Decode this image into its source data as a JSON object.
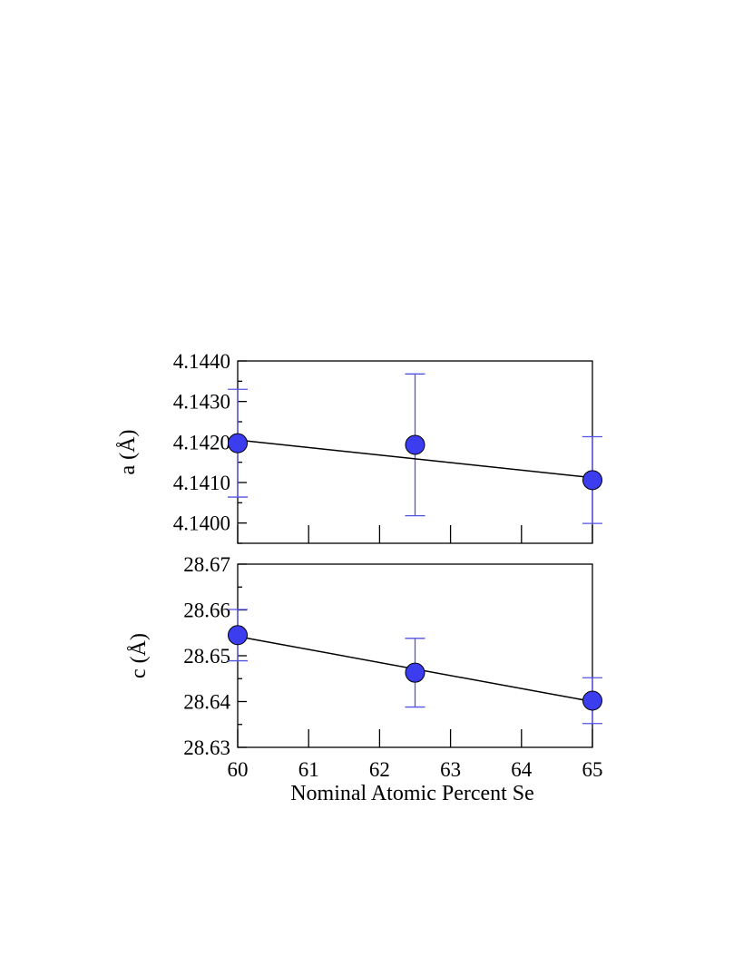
{
  "chart_data": [
    {
      "type": "scatter",
      "title": "",
      "xlabel": "",
      "ylabel": "a (Å)",
      "xlim": [
        60,
        65
      ],
      "ylim": [
        4.1395,
        4.144
      ],
      "x_ticks": [
        60,
        61,
        62,
        63,
        64,
        65
      ],
      "y_ticks": [
        4.14,
        4.141,
        4.142,
        4.143,
        4.144
      ],
      "y_tick_labels": [
        "4.1400",
        "4.1410",
        "4.1420",
        "4.1430",
        "4.1440"
      ],
      "show_x_tick_labels": false,
      "grid": false,
      "series": [
        {
          "x": [
            60,
            62.5,
            65
          ],
          "y": [
            4.14197,
            4.14193,
            4.14106
          ],
          "yerr": [
            0.00133,
            0.00175,
            0.00107
          ],
          "marker_color": "#3d3df0",
          "errorbar_color": "#5252e6"
        }
      ],
      "fit_line": {
        "x": [
          60,
          65
        ],
        "y": [
          4.14205,
          4.14112
        ],
        "color": "#000000"
      }
    },
    {
      "type": "scatter",
      "title": "",
      "xlabel": "Nominal Atomic Percent Se",
      "ylabel": "c (Å)",
      "xlim": [
        60,
        65
      ],
      "ylim": [
        28.63,
        28.67
      ],
      "x_ticks": [
        60,
        61,
        62,
        63,
        64,
        65
      ],
      "x_tick_labels": [
        "60",
        "61",
        "62",
        "63",
        "64",
        "65"
      ],
      "y_ticks": [
        28.63,
        28.64,
        28.65,
        28.66,
        28.67
      ],
      "y_tick_labels": [
        "28.63",
        "28.64",
        "28.65",
        "28.66",
        "28.67"
      ],
      "show_x_tick_labels": true,
      "grid": false,
      "series": [
        {
          "x": [
            60,
            62.5,
            65
          ],
          "y": [
            28.6545,
            28.6463,
            28.6402
          ],
          "yerr": [
            0.0056,
            0.0075,
            0.005
          ],
          "marker_color": "#3d3df0",
          "errorbar_color": "#5252e6"
        }
      ],
      "fit_line": {
        "x": [
          60,
          65
        ],
        "y": [
          28.6542,
          28.64
        ],
        "color": "#000000"
      }
    }
  ]
}
